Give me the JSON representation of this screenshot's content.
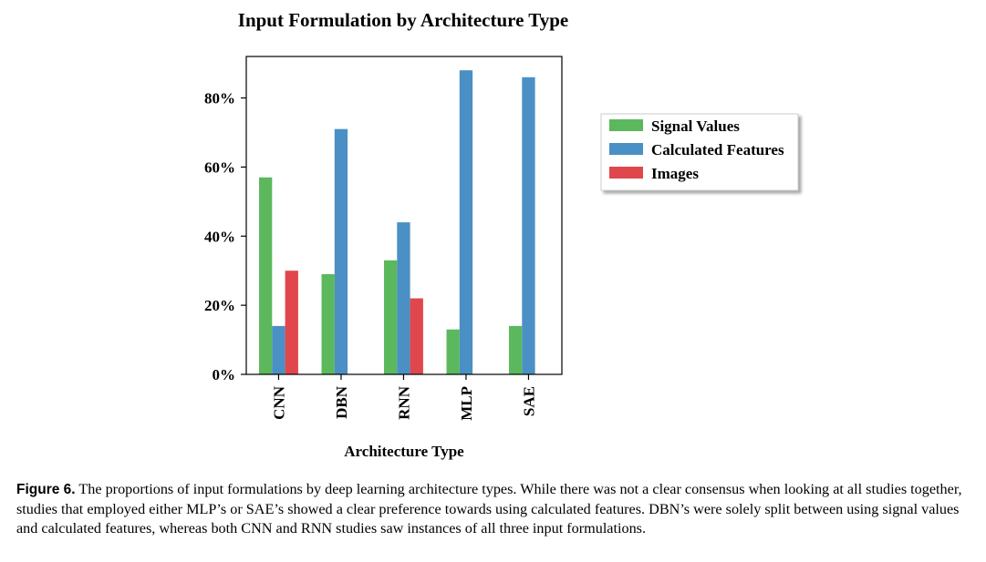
{
  "chart_data": {
    "type": "bar",
    "title": "Input Formulation by Architecture Type",
    "xlabel": "Architecture Type",
    "ylabel": "",
    "categories": [
      "CNN",
      "DBN",
      "RNN",
      "MLP",
      "SAE"
    ],
    "series": [
      {
        "name": "Signal Values",
        "color": "#5cb85c",
        "values": [
          57,
          29,
          33,
          13,
          14
        ]
      },
      {
        "name": "Calculated Features",
        "color": "#4a90c4",
        "values": [
          14,
          71,
          44,
          88,
          86
        ]
      },
      {
        "name": "Images",
        "color": "#e0474c",
        "values": [
          30,
          0,
          22,
          0,
          0
        ]
      }
    ],
    "ylim": [
      0,
      92
    ],
    "yticks": [
      0,
      20,
      40,
      60,
      80
    ],
    "ytick_labels": [
      "0%",
      "20%",
      "40%",
      "60%",
      "80%"
    ],
    "grid": false,
    "legend_position": "right"
  },
  "caption": {
    "label": "Figure 6.",
    "text": "The proportions of input formulations by deep learning architecture types. While there was not a clear consensus when looking at all studies together, studies that employed either MLP’s or SAE’s showed a clear preference towards using calculated features. DBN’s were solely split between using signal values and calculated features, whereas both CNN and RNN studies saw instances of all three input formulations."
  }
}
